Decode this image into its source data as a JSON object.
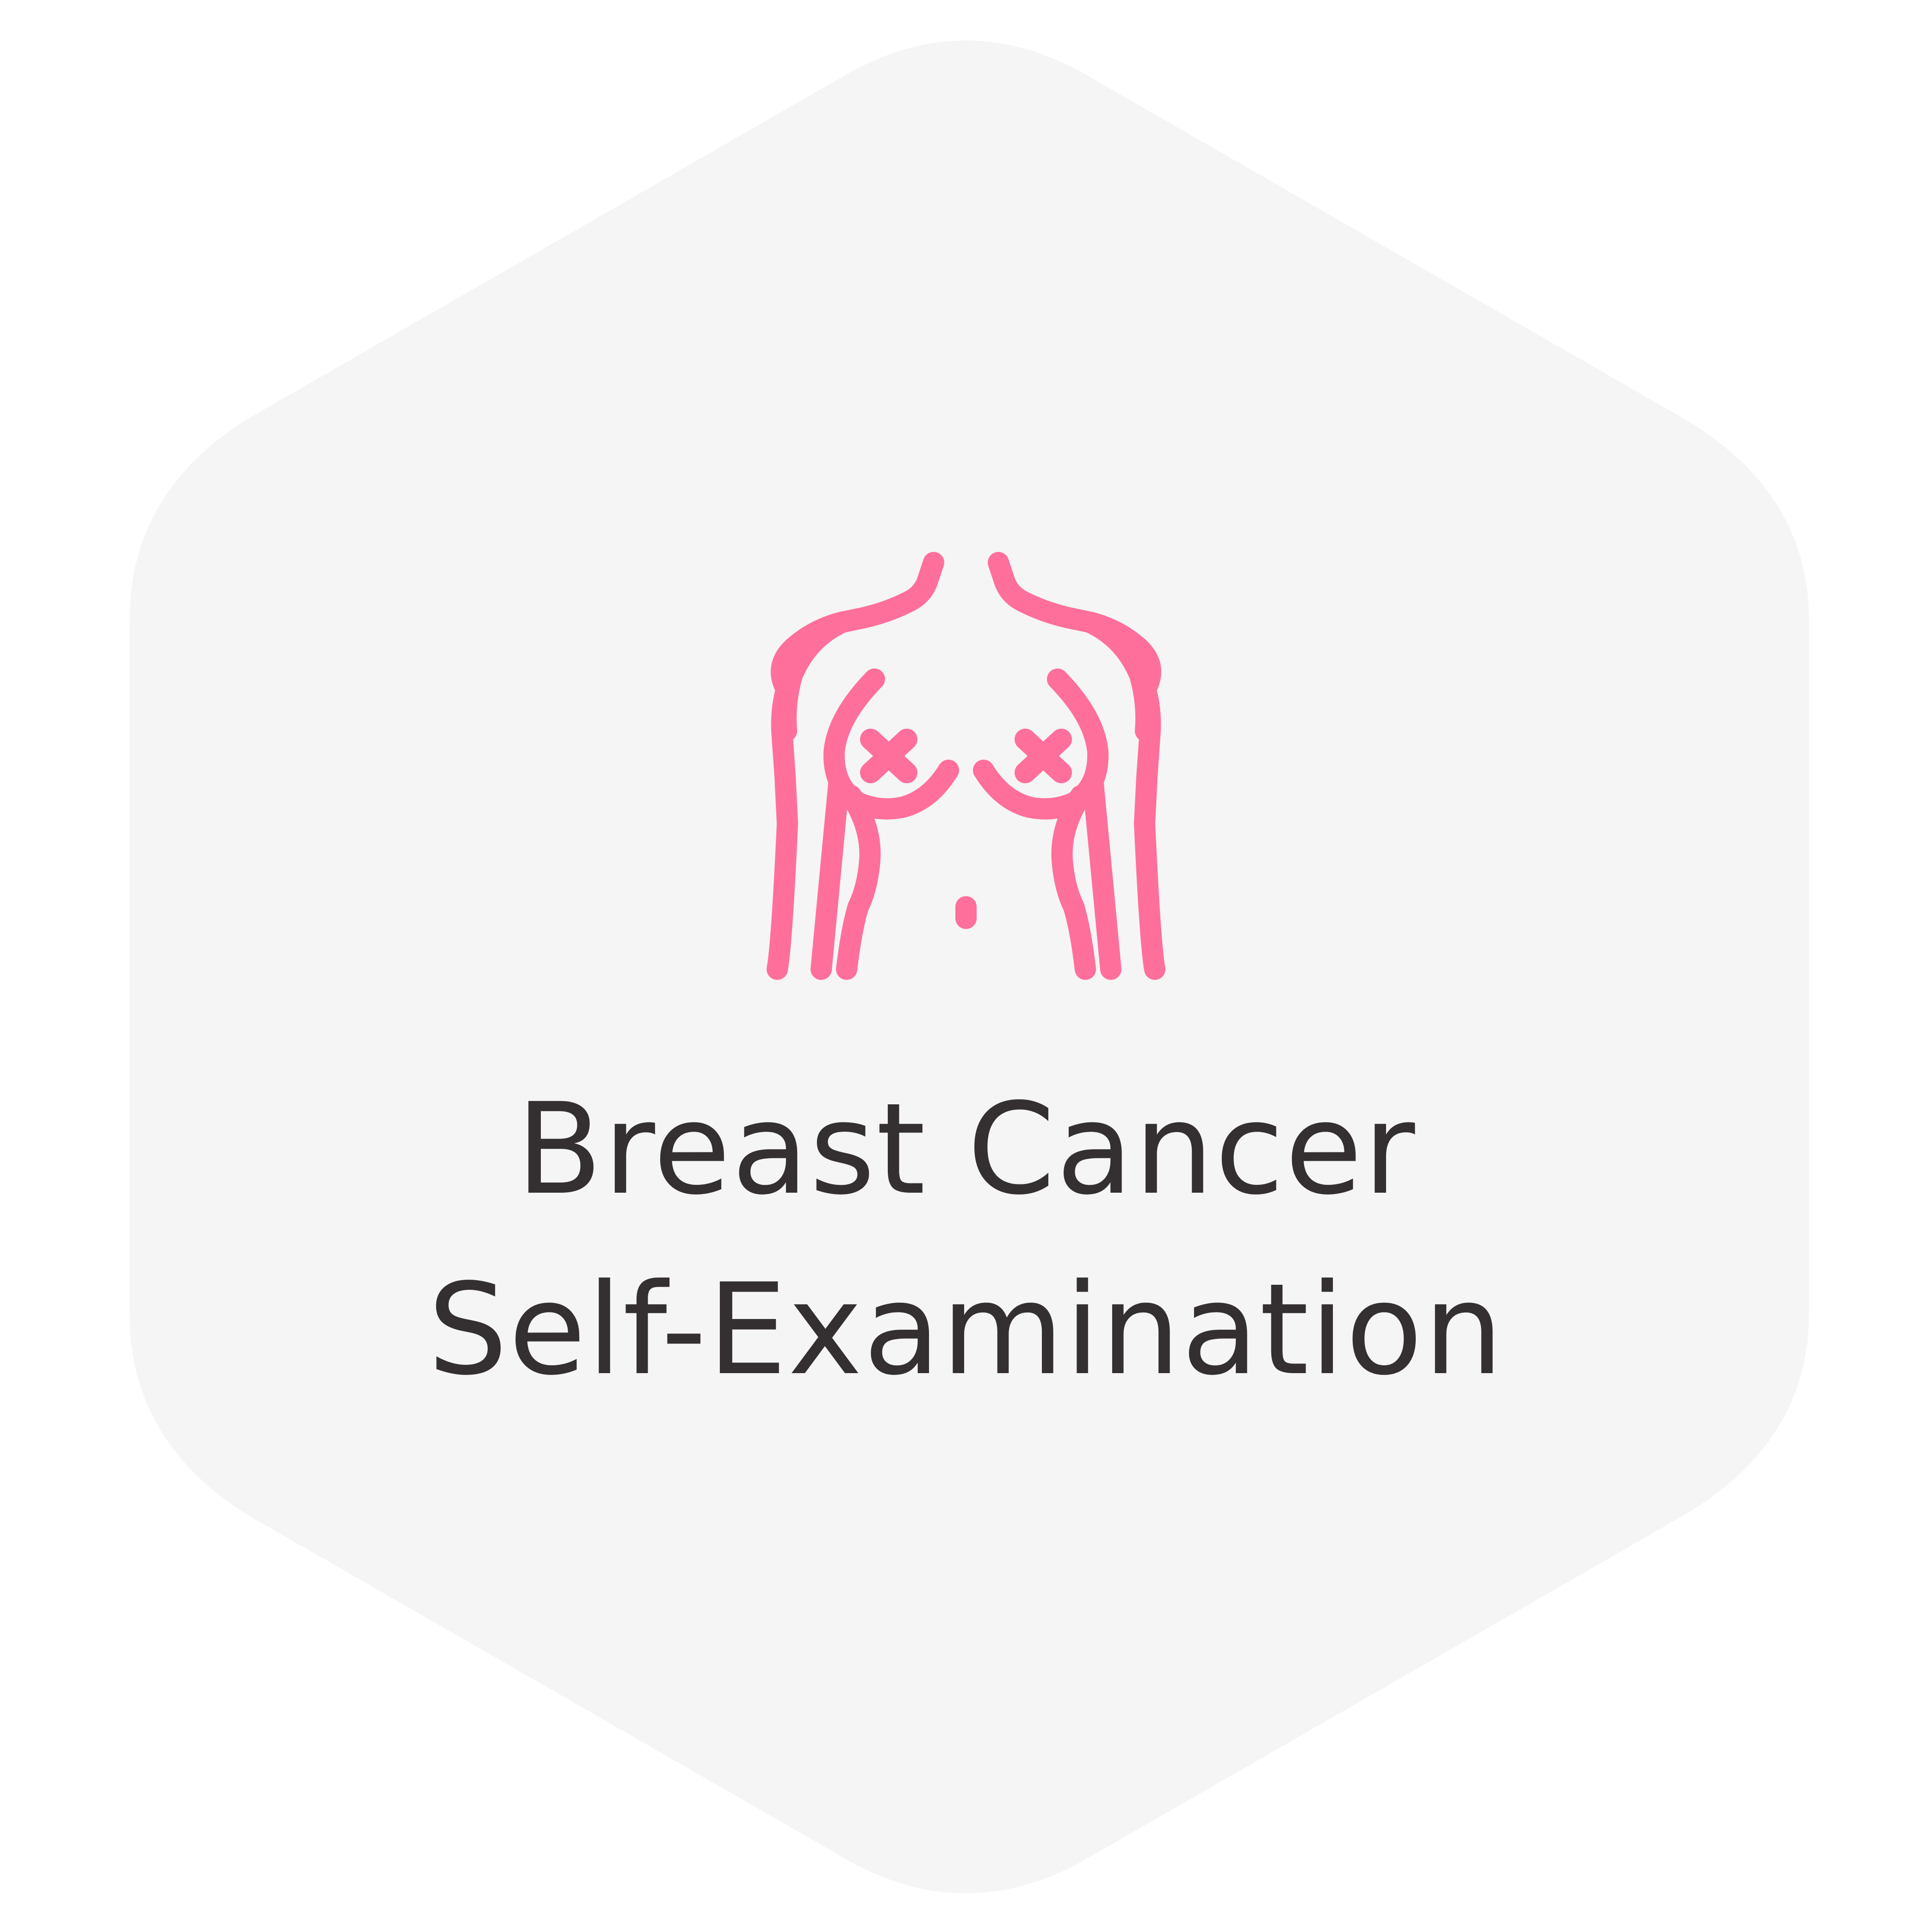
{
  "card": {
    "background_color": "#f5f5f5",
    "icon": "breast-self-exam-icon",
    "icon_color": "#ff6f9c",
    "title_color": "#342f31",
    "title_line_1": "Breast Cancer",
    "title_line_2": "Self-Examination"
  }
}
